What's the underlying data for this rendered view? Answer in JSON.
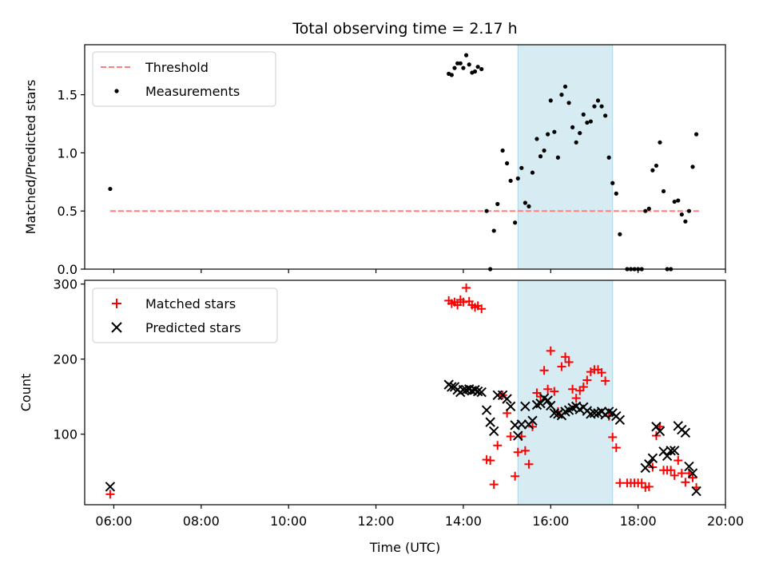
{
  "chart_data": [
    {
      "type": "scatter",
      "title": "Total observing time = 2.17 h",
      "xlabel": "",
      "ylabel": "Matched/Predicted stars",
      "xlim": [
        "05:20",
        "20:00"
      ],
      "ylim": [
        0,
        1.93
      ],
      "yticks": [
        "0.0",
        "0.5",
        "1.0",
        "1.5"
      ],
      "highlight_span": [
        "15:15",
        "17:25"
      ],
      "legend_position": "upper-left",
      "legend": [
        "Threshold",
        "Measurements"
      ],
      "threshold": {
        "name": "Threshold",
        "value": 0.5,
        "x_range": [
          "05:55",
          "19:25"
        ],
        "color": "#ff7f7f",
        "style": "dashed"
      },
      "series": [
        {
          "name": "Measurements",
          "color": "#000000",
          "marker": "dot",
          "points": [
            [
              "05:55",
              0.69
            ],
            [
              "13:40",
              1.68
            ],
            [
              "13:44",
              1.67
            ],
            [
              "13:48",
              1.73
            ],
            [
              "13:52",
              1.77
            ],
            [
              "13:56",
              1.77
            ],
            [
              "14:00",
              1.73
            ],
            [
              "14:04",
              1.84
            ],
            [
              "14:08",
              1.76
            ],
            [
              "14:12",
              1.69
            ],
            [
              "14:16",
              1.7
            ],
            [
              "14:20",
              1.74
            ],
            [
              "14:25",
              1.72
            ],
            [
              "14:32",
              0.5
            ],
            [
              "14:37",
              0.0
            ],
            [
              "14:42",
              0.33
            ],
            [
              "14:47",
              0.56
            ],
            [
              "14:54",
              1.02
            ],
            [
              "15:00",
              0.91
            ],
            [
              "15:05",
              0.76
            ],
            [
              "15:11",
              0.4
            ],
            [
              "15:15",
              0.78
            ],
            [
              "15:20",
              0.87
            ],
            [
              "15:25",
              0.57
            ],
            [
              "15:30",
              0.54
            ],
            [
              "15:35",
              0.83
            ],
            [
              "15:41",
              1.12
            ],
            [
              "15:46",
              0.97
            ],
            [
              "15:51",
              1.02
            ],
            [
              "15:56",
              1.16
            ],
            [
              "16:00",
              1.45
            ],
            [
              "16:05",
              1.18
            ],
            [
              "16:10",
              0.96
            ],
            [
              "16:15",
              1.5
            ],
            [
              "16:20",
              1.57
            ],
            [
              "16:25",
              1.43
            ],
            [
              "16:30",
              1.22
            ],
            [
              "16:35",
              1.09
            ],
            [
              "16:40",
              1.17
            ],
            [
              "16:45",
              1.33
            ],
            [
              "16:50",
              1.26
            ],
            [
              "16:55",
              1.27
            ],
            [
              "17:00",
              1.4
            ],
            [
              "17:05",
              1.45
            ],
            [
              "17:10",
              1.4
            ],
            [
              "17:15",
              1.32
            ],
            [
              "17:20",
              0.96
            ],
            [
              "17:25",
              0.74
            ],
            [
              "17:30",
              0.65
            ],
            [
              "17:35",
              0.3
            ],
            [
              "17:45",
              0.0
            ],
            [
              "17:50",
              0.0
            ],
            [
              "17:55",
              0.0
            ],
            [
              "18:00",
              0.0
            ],
            [
              "18:05",
              0.0
            ],
            [
              "18:10",
              0.5
            ],
            [
              "18:15",
              0.52
            ],
            [
              "18:20",
              0.85
            ],
            [
              "18:25",
              0.89
            ],
            [
              "18:30",
              1.09
            ],
            [
              "18:35",
              0.67
            ],
            [
              "18:40",
              0.0
            ],
            [
              "18:45",
              0.0
            ],
            [
              "18:50",
              0.58
            ],
            [
              "18:55",
              0.59
            ],
            [
              "19:00",
              0.47
            ],
            [
              "19:05",
              0.41
            ],
            [
              "19:10",
              0.5
            ],
            [
              "19:15",
              0.88
            ],
            [
              "19:20",
              1.16
            ]
          ]
        }
      ]
    },
    {
      "type": "scatter",
      "title": "",
      "xlabel": "Time (UTC)",
      "ylabel": "Count",
      "xlim": [
        "05:20",
        "20:00"
      ],
      "ylim": [
        6,
        305
      ],
      "xticks": [
        "06:00",
        "08:00",
        "10:00",
        "12:00",
        "14:00",
        "16:00",
        "18:00",
        "20:00"
      ],
      "yticks": [
        "100",
        "200",
        "300"
      ],
      "highlight_span": [
        "15:15",
        "17:25"
      ],
      "legend_position": "upper-left",
      "legend": [
        "Matched stars",
        "Predicted stars"
      ],
      "series": [
        {
          "name": "Matched stars",
          "color": "#ff0000",
          "marker": "plus",
          "points": [
            [
              "05:55",
              20
            ],
            [
              "13:40",
              278
            ],
            [
              "13:44",
              274
            ],
            [
              "13:48",
              276
            ],
            [
              "13:52",
              272
            ],
            [
              "13:56",
              279
            ],
            [
              "14:00",
              276
            ],
            [
              "14:04",
              295
            ],
            [
              "14:08",
              277
            ],
            [
              "14:12",
              272
            ],
            [
              "14:16",
              269
            ],
            [
              "14:20",
              271
            ],
            [
              "14:25",
              267
            ],
            [
              "14:32",
              66
            ],
            [
              "14:37",
              65
            ],
            [
              "14:42",
              33
            ],
            [
              "14:47",
              85
            ],
            [
              "14:54",
              152
            ],
            [
              "15:00",
              128
            ],
            [
              "15:05",
              97
            ],
            [
              "15:11",
              44
            ],
            [
              "15:15",
              76
            ],
            [
              "15:20",
              97
            ],
            [
              "15:25",
              78
            ],
            [
              "15:30",
              60
            ],
            [
              "15:35",
              110
            ],
            [
              "15:41",
              155
            ],
            [
              "15:46",
              150
            ],
            [
              "15:51",
              185
            ],
            [
              "15:56",
              160
            ],
            [
              "16:00",
              211
            ],
            [
              "16:05",
              157
            ],
            [
              "16:10",
              130
            ],
            [
              "16:15",
              190
            ],
            [
              "16:20",
              203
            ],
            [
              "16:25",
              196
            ],
            [
              "16:30",
              160
            ],
            [
              "16:35",
              148
            ],
            [
              "16:40",
              158
            ],
            [
              "16:45",
              163
            ],
            [
              "16:50",
              172
            ],
            [
              "16:55",
              183
            ],
            [
              "17:00",
              186
            ],
            [
              "17:05",
              186
            ],
            [
              "17:10",
              182
            ],
            [
              "17:15",
              171
            ],
            [
              "17:20",
              124
            ],
            [
              "17:25",
              96
            ],
            [
              "17:30",
              82
            ],
            [
              "17:35",
              35
            ],
            [
              "17:45",
              35
            ],
            [
              "17:50",
              35
            ],
            [
              "17:55",
              35
            ],
            [
              "18:00",
              35
            ],
            [
              "18:05",
              35
            ],
            [
              "18:10",
              29
            ],
            [
              "18:15",
              30
            ],
            [
              "18:20",
              56
            ],
            [
              "18:25",
              98
            ],
            [
              "18:30",
              110
            ],
            [
              "18:35",
              52
            ],
            [
              "18:40",
              52
            ],
            [
              "18:45",
              52
            ],
            [
              "18:50",
              45
            ],
            [
              "18:55",
              65
            ],
            [
              "19:00",
              48
            ],
            [
              "19:05",
              36
            ],
            [
              "19:10",
              48
            ],
            [
              "19:15",
              42
            ],
            [
              "19:20",
              29
            ]
          ]
        },
        {
          "name": "Predicted stars",
          "color": "#000000",
          "marker": "x",
          "points": [
            [
              "05:55",
              30
            ],
            [
              "13:40",
              166
            ],
            [
              "13:44",
              163
            ],
            [
              "13:48",
              163
            ],
            [
              "13:52",
              159
            ],
            [
              "13:56",
              156
            ],
            [
              "14:00",
              159
            ],
            [
              "14:04",
              159
            ],
            [
              "14:08",
              160
            ],
            [
              "14:12",
              158
            ],
            [
              "14:16",
              159
            ],
            [
              "14:20",
              157
            ],
            [
              "14:25",
              156
            ],
            [
              "14:32",
              132
            ],
            [
              "14:37",
              116
            ],
            [
              "14:42",
              104
            ],
            [
              "14:47",
              152
            ],
            [
              "14:54",
              152
            ],
            [
              "15:00",
              147
            ],
            [
              "15:05",
              137
            ],
            [
              "15:11",
              112
            ],
            [
              "15:15",
              98
            ],
            [
              "15:20",
              113
            ],
            [
              "15:25",
              137
            ],
            [
              "15:30",
              113
            ],
            [
              "15:35",
              118
            ],
            [
              "15:41",
              139
            ],
            [
              "15:46",
              141
            ],
            [
              "15:51",
              148
            ],
            [
              "15:56",
              145
            ],
            [
              "16:00",
              138
            ],
            [
              "16:05",
              128
            ],
            [
              "16:10",
              127
            ],
            [
              "16:15",
              125
            ],
            [
              "16:20",
              130
            ],
            [
              "16:25",
              132
            ],
            [
              "16:30",
              135
            ],
            [
              "16:35",
              137
            ],
            [
              "16:40",
              133
            ],
            [
              "16:45",
              136
            ],
            [
              "16:50",
              131
            ],
            [
              "16:55",
              127
            ],
            [
              "17:00",
              128
            ],
            [
              "17:05",
              128
            ],
            [
              "17:10",
              130
            ],
            [
              "17:15",
              126
            ],
            [
              "17:20",
              130
            ],
            [
              "17:25",
              128
            ],
            [
              "17:30",
              124
            ],
            [
              "17:35",
              119
            ],
            [
              "18:10",
              55
            ],
            [
              "18:15",
              60
            ],
            [
              "18:20",
              68
            ],
            [
              "18:25",
              110
            ],
            [
              "18:30",
              104
            ],
            [
              "18:35",
              77
            ],
            [
              "18:40",
              71
            ],
            [
              "18:45",
              78
            ],
            [
              "18:50",
              78
            ],
            [
              "18:55",
              111
            ],
            [
              "19:00",
              106
            ],
            [
              "19:05",
              102
            ],
            [
              "19:10",
              57
            ],
            [
              "19:15",
              48
            ],
            [
              "19:20",
              24
            ]
          ]
        }
      ]
    }
  ]
}
